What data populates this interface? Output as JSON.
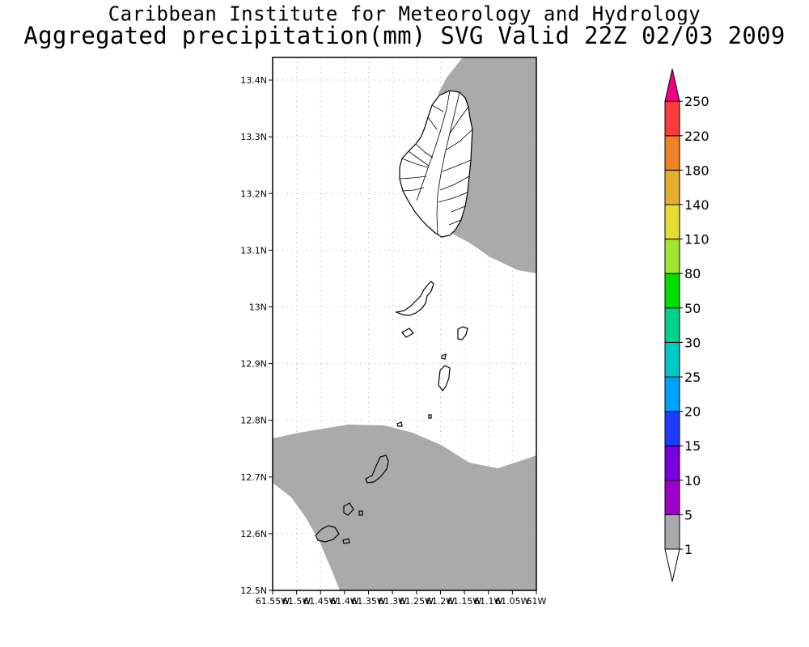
{
  "header": {
    "institution": "Caribbean Institute for Meteorology and Hydrology",
    "product": "Aggregated precipitation(mm) SVG Valid 22Z 02/03 2009"
  },
  "map": {
    "lat_ticks": [
      "13.4N",
      "13.3N",
      "13.2N",
      "13.1N",
      "13N",
      "12.9N",
      "12.8N",
      "12.7N",
      "12.6N",
      "12.5N"
    ],
    "lon_ticks": [
      "61.55W",
      "61.5W",
      "61.45W",
      "61.4W",
      "61.35W",
      "61.3W",
      "61.25W",
      "61.2W",
      "61.15W",
      "61.1W",
      "61.05W",
      "61W"
    ],
    "lat_range": [
      12.5,
      13.44
    ],
    "lon_range": [
      -61.55,
      -61.0
    ],
    "grid": true,
    "shaded_color": "#aaaaaa"
  },
  "legend": {
    "position": "right",
    "levels": [
      "1",
      "5",
      "10",
      "15",
      "20",
      "25",
      "30",
      "50",
      "80",
      "110",
      "140",
      "180",
      "220",
      "250"
    ],
    "colors": [
      "#ffffff",
      "#aaaaaa",
      "#a000c8",
      "#7800dc",
      "#1e3cff",
      "#00a0ff",
      "#00c8c8",
      "#00d28c",
      "#00dc00",
      "#a0e632",
      "#e6dc32",
      "#e6af2d",
      "#f08228",
      "#fa3c3c",
      "#f00082"
    ]
  }
}
